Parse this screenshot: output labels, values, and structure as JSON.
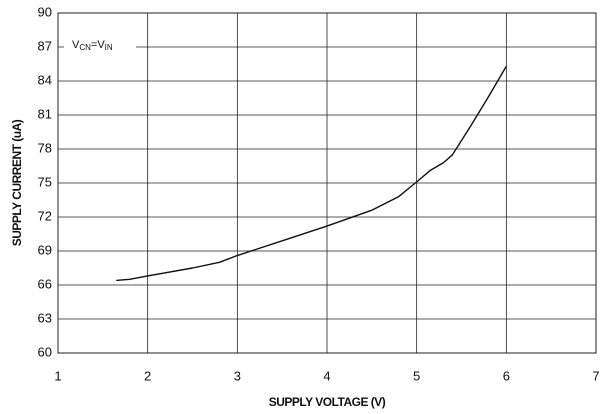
{
  "chart_data": {
    "type": "line",
    "x_label": "SUPPLY VOLTAGE (V)",
    "y_label": "SUPPLY CURRENT (uA)",
    "annotation_parts": [
      "V",
      "CN",
      "=V",
      "IN"
    ],
    "xlim": [
      1,
      7
    ],
    "xticks": [
      1,
      2,
      3,
      4,
      5,
      6,
      7
    ],
    "ylim": [
      60,
      90
    ],
    "yticks": [
      60,
      63,
      66,
      69,
      72,
      75,
      78,
      81,
      84,
      87,
      90
    ],
    "grid": true,
    "series": [
      {
        "color": "#111111",
        "x": [
          1.65,
          1.8,
          2.0,
          2.5,
          2.8,
          3.0,
          3.5,
          4.0,
          4.5,
          4.8,
          5.0,
          5.15,
          5.3,
          5.4,
          5.6,
          5.8,
          6.0
        ],
        "values": [
          66.4,
          66.5,
          66.8,
          67.5,
          68.0,
          68.6,
          69.9,
          71.2,
          72.6,
          73.8,
          75.1,
          76.1,
          76.8,
          77.5,
          80.0,
          82.6,
          85.3
        ]
      }
    ]
  }
}
